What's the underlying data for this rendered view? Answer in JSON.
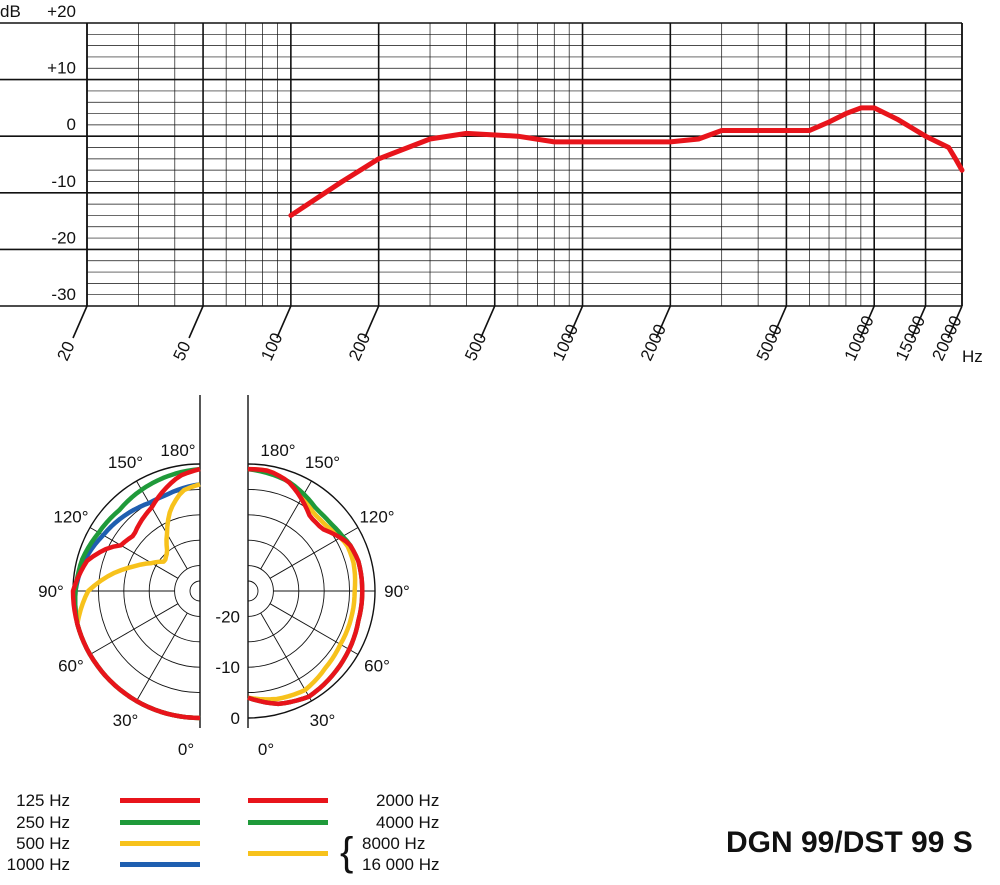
{
  "chart_data": [
    {
      "type": "line",
      "title": "",
      "ylabel": "dB",
      "xlabel": "Hz",
      "xscale": "log",
      "xlim": [
        20,
        20000
      ],
      "ylim": [
        -30,
        20
      ],
      "yticks": [
        "+20",
        "+10",
        "0",
        "-10",
        "-20",
        "-30"
      ],
      "yticks_values": [
        20,
        10,
        0,
        -10,
        -20,
        -30
      ],
      "xticks": [
        "20",
        "50",
        "100",
        "200",
        "500",
        "1000",
        "2000",
        "5000",
        "10000",
        "15000",
        "20000"
      ],
      "xticks_values": [
        20,
        50,
        100,
        200,
        500,
        1000,
        2000,
        5000,
        10000,
        15000,
        20000
      ],
      "grid": true,
      "color": "#e8141b",
      "series": [
        {
          "x": [
            100,
            150,
            200,
            300,
            400,
            600,
            800,
            1000,
            1500,
            2000,
            2500,
            3000,
            4000,
            5000,
            6000,
            7000,
            8000,
            9000,
            10000,
            12000,
            15000,
            18000,
            19000,
            20000
          ],
          "y": [
            -14,
            -8,
            -4,
            -0.5,
            0.5,
            0,
            -1,
            -1,
            -1,
            -1,
            -0.5,
            1,
            1,
            1,
            1,
            2.5,
            4,
            5,
            5,
            3,
            0,
            -2,
            -4,
            -6
          ]
        }
      ]
    },
    {
      "type": "polar",
      "title": "",
      "angle_labels_left": [
        "180°",
        "150°",
        "120°",
        "90°",
        "60°",
        "30°",
        "0°"
      ],
      "angle_labels_right": [
        "180°",
        "150°",
        "120°",
        "90°",
        "60°",
        "30°",
        "0°"
      ],
      "radial_labels": [
        "-20",
        "-10",
        "0"
      ],
      "radial_values": [
        -20,
        -10,
        0
      ],
      "rlim": [
        -25,
        0
      ],
      "grid": true,
      "left_series": [
        {
          "name": "125 Hz",
          "color": "#e8141b",
          "angles": [
            0,
            15,
            30,
            45,
            60,
            75,
            90,
            105,
            115,
            120,
            130,
            140,
            150,
            160,
            170,
            180
          ],
          "values": [
            0,
            0,
            0,
            0,
            0,
            0,
            0,
            -2,
            -5,
            -7,
            -8,
            -7,
            -6,
            -4,
            -2,
            -1
          ]
        },
        {
          "name": "250 Hz",
          "color": "#1f9a3a",
          "angles": [
            0,
            15,
            30,
            45,
            60,
            75,
            90,
            105,
            120,
            135,
            150,
            165,
            180
          ],
          "values": [
            0,
            0,
            0,
            0,
            0,
            0,
            -0.5,
            -1,
            -2,
            -2.5,
            -2,
            -1.5,
            -1
          ]
        },
        {
          "name": "500 Hz",
          "color": "#f7c21c",
          "angles": [
            0,
            15,
            30,
            45,
            60,
            75,
            90,
            100,
            110,
            120,
            130,
            140,
            150,
            160,
            170,
            180
          ],
          "values": [
            0,
            0,
            0,
            0,
            0,
            0,
            -3,
            -7,
            -11,
            -14,
            -16,
            -15,
            -12,
            -8,
            -5,
            -4
          ]
        },
        {
          "name": "1000 Hz",
          "color": "#1f5fb0",
          "angles": [
            0,
            15,
            30,
            45,
            60,
            75,
            90,
            105,
            120,
            135,
            150,
            160,
            170,
            180
          ],
          "values": [
            0,
            0,
            0,
            0,
            0,
            0,
            -0.5,
            -1.5,
            -3,
            -4,
            -5,
            -5,
            -4.5,
            -4
          ]
        }
      ],
      "right_series": [
        {
          "name": "2000 Hz",
          "color": "#e8141b",
          "angles": [
            0,
            15,
            30,
            45,
            60,
            75,
            90,
            105,
            115,
            120,
            130,
            140,
            150,
            160,
            170,
            180
          ],
          "values": [
            -4,
            -2,
            -1,
            -1.5,
            -2,
            -2.5,
            -2.5,
            -2.5,
            -3,
            -4,
            -6,
            -6,
            -4,
            -2,
            -1,
            -1
          ]
        },
        {
          "name": "4000 Hz",
          "color": "#1f9a3a",
          "angles": [
            0,
            15,
            30,
            45,
            60,
            75,
            90,
            105,
            115,
            120,
            130,
            140,
            150,
            160,
            170,
            180
          ],
          "values": [
            -4,
            -2,
            -1,
            -1.5,
            -2,
            -2.5,
            -2.5,
            -2.5,
            -3,
            -3.5,
            -4,
            -4,
            -3,
            -2,
            -1.5,
            -1
          ]
        },
        {
          "name": "8000 Hz / 16000 Hz",
          "color": "#f7c21c",
          "angles": [
            0,
            15,
            30,
            45,
            60,
            75,
            90,
            105,
            115,
            120,
            130,
            140,
            150,
            160,
            170,
            180
          ],
          "values": [
            -4,
            -3,
            -2.5,
            -3.5,
            -4,
            -4,
            -4,
            -3.5,
            -3.5,
            -4,
            -5,
            -5,
            -3.5,
            -2,
            -1,
            -1
          ]
        }
      ]
    }
  ],
  "legend": {
    "left": [
      {
        "label": "125 Hz",
        "color": "#e8141b"
      },
      {
        "label": "250 Hz",
        "color": "#1f9a3a"
      },
      {
        "label": "500 Hz",
        "color": "#f7c21c"
      },
      {
        "label": "1000 Hz",
        "color": "#1f5fb0"
      }
    ],
    "right": [
      {
        "label": "2000 Hz",
        "color": "#e8141b"
      },
      {
        "label": "4000 Hz",
        "color": "#1f9a3a"
      },
      {
        "label": "8000 Hz",
        "color": "#f7c21c"
      },
      {
        "label": "16 000 Hz",
        "color": "#f7c21c"
      }
    ]
  },
  "model": "DGN 99/DST 99 S"
}
